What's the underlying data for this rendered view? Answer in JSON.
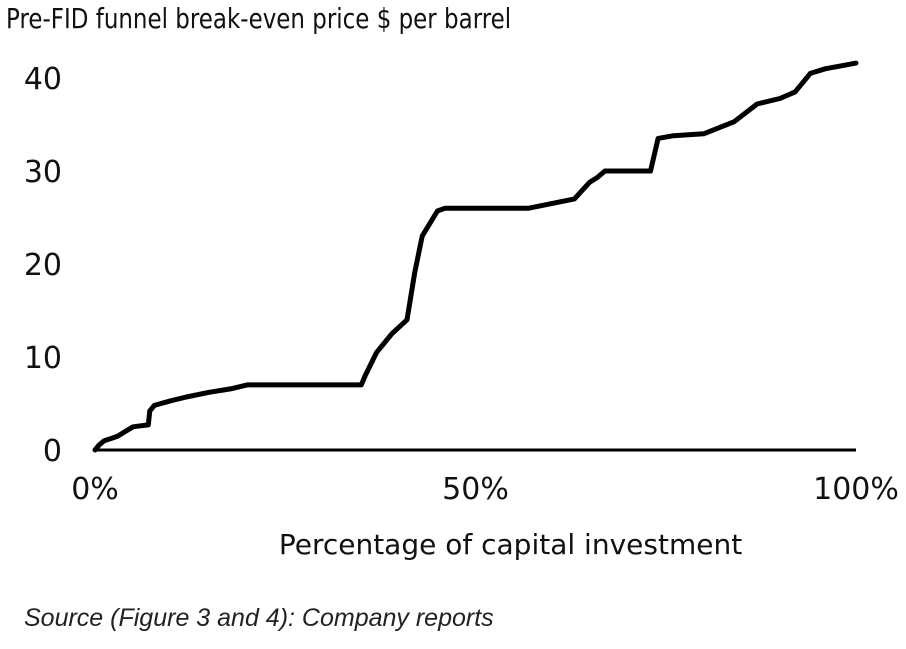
{
  "chart_data": {
    "type": "line",
    "title": "Pre-FID funnel break-even price $ per barrel",
    "xlabel": "Percentage of capital investment",
    "ylabel": "",
    "xlim": [
      0,
      100
    ],
    "ylim": [
      0,
      40
    ],
    "x_ticks": [
      {
        "value": 0,
        "label": "0%"
      },
      {
        "value": 50,
        "label": "50%"
      },
      {
        "value": 100,
        "label": "100%"
      }
    ],
    "y_ticks": [
      {
        "value": 0,
        "label": "0"
      },
      {
        "value": 10,
        "label": "10"
      },
      {
        "value": 20,
        "label": "20"
      },
      {
        "value": 30,
        "label": "30"
      },
      {
        "value": 40,
        "label": "40"
      }
    ],
    "grid": false,
    "legend": "none",
    "color": "#000000",
    "series": [
      {
        "x": [
          0,
          0.5,
          1.2,
          2,
          3,
          4,
          5,
          6,
          7,
          7.2,
          7.8,
          10,
          12,
          15,
          18,
          20,
          25,
          30,
          35,
          35.5,
          37,
          39,
          41,
          42,
          43,
          45,
          46,
          48,
          50,
          52,
          55,
          57,
          60,
          63,
          65,
          66,
          67,
          70,
          73,
          74,
          76,
          80,
          84,
          87,
          90,
          92,
          94,
          96,
          98,
          100
        ],
        "y": [
          0,
          0.5,
          1,
          1.2,
          1.5,
          2,
          2.5,
          2.6,
          2.7,
          4.2,
          4.8,
          5.3,
          5.7,
          6.2,
          6.6,
          7,
          7,
          7,
          7,
          8,
          10.5,
          12.5,
          14,
          19,
          23,
          25.7,
          26,
          26,
          26,
          26,
          26,
          26,
          26.5,
          27,
          28.8,
          29.3,
          30,
          30,
          30,
          33.5,
          33.8,
          34,
          35.3,
          37.2,
          37.8,
          38.5,
          40.5,
          41,
          41.3,
          41.6
        ]
      }
    ]
  },
  "source_note": "Source (Figure 3 and 4): Company reports"
}
